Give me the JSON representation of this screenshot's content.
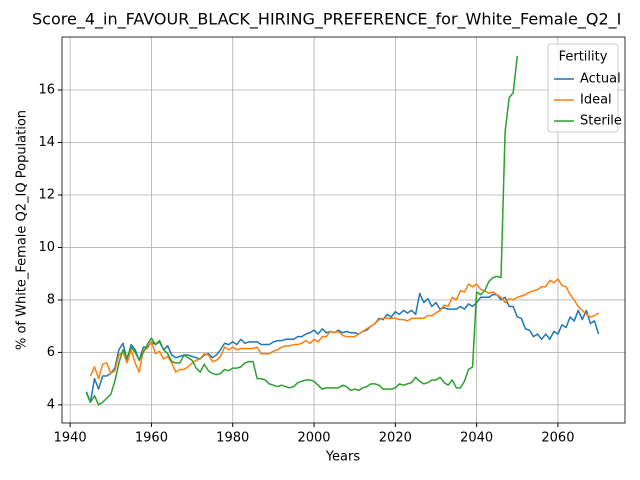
{
  "chart_data": {
    "type": "line",
    "title": "Score_4_in_FAVOUR_BLACK_HIRING_PREFERENCE_for_White_Female_Q2_I",
    "x_label": "Years",
    "y_label": "% of White_Female Q2_IQ Population",
    "legend_title": "Fertility",
    "legend": "upper right",
    "grid": true,
    "xlim": [
      1938,
      2076.5
    ],
    "ylim": [
      3.31,
      18.02
    ],
    "xticks": [
      1940,
      1960,
      1980,
      2000,
      2020,
      2040,
      2060
    ],
    "yticks": [
      4,
      6,
      8,
      10,
      12,
      14,
      16
    ],
    "x": [
      1944,
      1945,
      1946,
      1947,
      1948,
      1949,
      1950,
      1951,
      1952,
      1953,
      1954,
      1955,
      1956,
      1957,
      1958,
      1959,
      1960,
      1961,
      1962,
      1963,
      1964,
      1965,
      1966,
      1967,
      1968,
      1969,
      1970,
      1971,
      1972,
      1973,
      1974,
      1975,
      1976,
      1977,
      1978,
      1979,
      1980,
      1981,
      1982,
      1983,
      1984,
      1985,
      1986,
      1987,
      1988,
      1989,
      1990,
      1991,
      1992,
      1993,
      1994,
      1995,
      1996,
      1997,
      1998,
      1999,
      2000,
      2001,
      2002,
      2003,
      2004,
      2005,
      2006,
      2007,
      2008,
      2009,
      2010,
      2011,
      2012,
      2013,
      2014,
      2015,
      2016,
      2017,
      2018,
      2019,
      2020,
      2021,
      2022,
      2023,
      2024,
      2025,
      2026,
      2027,
      2028,
      2029,
      2030,
      2031,
      2032,
      2033,
      2034,
      2035,
      2036,
      2037,
      2038,
      2039,
      2040,
      2041,
      2042,
      2043,
      2044,
      2045,
      2046,
      2047,
      2048,
      2049,
      2050,
      2051,
      2052,
      2053,
      2054,
      2055,
      2056,
      2057,
      2058,
      2059,
      2060,
      2061,
      2062,
      2063,
      2064,
      2065,
      2066,
      2067,
      2068,
      2069,
      2070
    ],
    "series": [
      {
        "name": "Actual",
        "color": "#1f77b4",
        "values": [
          4.5,
          4.1,
          5.0,
          4.6,
          5.1,
          5.1,
          5.2,
          5.4,
          6.1,
          6.35,
          5.7,
          6.3,
          6.1,
          5.7,
          6.2,
          6.2,
          6.4,
          6.3,
          6.4,
          6.1,
          6.25,
          5.9,
          5.8,
          5.85,
          5.9,
          5.9,
          5.85,
          5.8,
          5.75,
          5.9,
          5.95,
          5.8,
          5.9,
          6.1,
          6.35,
          6.3,
          6.4,
          6.3,
          6.5,
          6.35,
          6.4,
          6.4,
          6.4,
          6.3,
          6.3,
          6.3,
          6.4,
          6.45,
          6.45,
          6.5,
          6.5,
          6.5,
          6.6,
          6.6,
          6.7,
          6.75,
          6.85,
          6.7,
          6.9,
          6.75,
          6.8,
          6.75,
          6.85,
          6.75,
          6.8,
          6.75,
          6.75,
          6.7,
          6.8,
          6.85,
          7.0,
          7.1,
          7.3,
          7.25,
          7.45,
          7.35,
          7.55,
          7.45,
          7.6,
          7.5,
          7.6,
          7.45,
          8.25,
          7.9,
          8.05,
          7.75,
          7.9,
          7.65,
          7.7,
          7.65,
          7.65,
          7.65,
          7.75,
          7.65,
          7.85,
          7.75,
          7.9,
          8.1,
          8.1,
          8.1,
          8.2,
          8.2,
          8.0,
          8.1,
          7.75,
          7.75,
          7.35,
          7.3,
          6.9,
          6.85,
          6.6,
          6.7,
          6.5,
          6.7,
          6.5,
          6.8,
          6.7,
          7.05,
          6.95,
          7.35,
          7.2,
          7.6,
          7.25,
          7.6,
          7.1,
          7.2,
          6.7
        ]
      },
      {
        "name": "Ideal",
        "color": "#ff7f0e",
        "values": [
          null,
          5.1,
          5.45,
          5.0,
          5.55,
          5.6,
          5.2,
          5.3,
          5.9,
          6.0,
          5.6,
          6.1,
          5.6,
          5.25,
          6.1,
          6.15,
          6.4,
          5.95,
          6.05,
          5.75,
          5.85,
          5.6,
          5.25,
          5.35,
          5.35,
          5.45,
          5.6,
          5.7,
          5.75,
          5.95,
          5.9,
          5.65,
          5.7,
          5.85,
          6.2,
          6.1,
          6.2,
          6.1,
          6.15,
          6.15,
          6.15,
          6.15,
          6.2,
          5.95,
          5.95,
          5.95,
          6.05,
          6.1,
          6.2,
          6.25,
          6.25,
          6.3,
          6.3,
          6.35,
          6.45,
          6.35,
          6.5,
          6.4,
          6.6,
          6.6,
          6.8,
          6.75,
          6.8,
          6.65,
          6.6,
          6.6,
          6.6,
          6.7,
          6.8,
          6.9,
          7.0,
          7.1,
          7.25,
          7.3,
          7.3,
          7.3,
          7.3,
          7.25,
          7.25,
          7.2,
          7.3,
          7.3,
          7.3,
          7.3,
          7.4,
          7.4,
          7.5,
          7.6,
          7.8,
          7.75,
          8.1,
          8.0,
          8.35,
          8.3,
          8.6,
          8.5,
          8.6,
          8.4,
          8.35,
          8.25,
          8.3,
          8.2,
          8.1,
          7.9,
          8.05,
          8.0,
          8.1,
          8.15,
          8.2,
          8.3,
          8.35,
          8.4,
          8.5,
          8.5,
          8.75,
          8.65,
          8.8,
          8.55,
          8.5,
          8.2,
          8.0,
          7.75,
          7.6,
          7.45,
          7.35,
          7.4,
          7.5
        ]
      },
      {
        "name": "Sterile",
        "color": "#2ca02c",
        "values": [
          4.45,
          4.1,
          4.35,
          4.0,
          4.1,
          4.25,
          4.4,
          4.9,
          5.6,
          6.1,
          5.8,
          6.2,
          6.0,
          5.7,
          6.0,
          6.3,
          6.55,
          6.3,
          6.45,
          6.1,
          5.95,
          5.65,
          5.6,
          5.6,
          5.9,
          5.8,
          5.7,
          5.4,
          5.25,
          5.55,
          5.3,
          5.2,
          5.15,
          5.2,
          5.35,
          5.3,
          5.4,
          5.4,
          5.45,
          5.6,
          5.65,
          5.65,
          5.0,
          5.0,
          4.95,
          4.8,
          4.75,
          4.7,
          4.75,
          4.7,
          4.65,
          4.7,
          4.85,
          4.9,
          4.95,
          4.95,
          4.9,
          4.75,
          4.6,
          4.65,
          4.65,
          4.65,
          4.65,
          4.75,
          4.7,
          4.55,
          4.6,
          4.55,
          4.65,
          4.7,
          4.8,
          4.8,
          4.75,
          4.6,
          4.6,
          4.6,
          4.65,
          4.8,
          4.75,
          4.8,
          4.85,
          5.05,
          4.9,
          4.8,
          4.85,
          4.95,
          4.95,
          5.05,
          4.85,
          4.75,
          4.95,
          4.65,
          4.65,
          4.9,
          5.35,
          5.45,
          8.3,
          8.2,
          8.35,
          8.7,
          8.85,
          8.9,
          8.85,
          14.4,
          15.7,
          15.9,
          17.3,
          null,
          null,
          null,
          null,
          null,
          null,
          null,
          null,
          null,
          null,
          null,
          null,
          null,
          null,
          null,
          null,
          null,
          null,
          null,
          null
        ]
      }
    ]
  }
}
